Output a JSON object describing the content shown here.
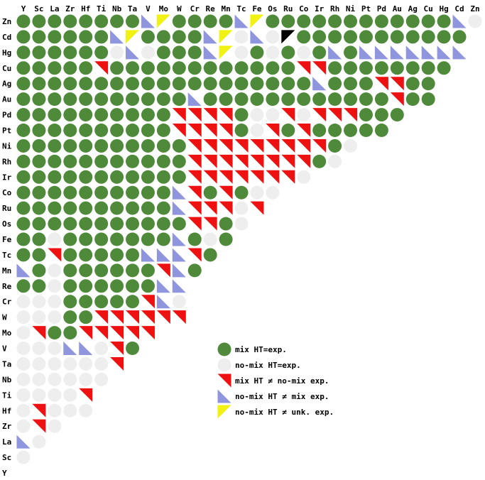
{
  "chart_data": {
    "type": "heatmap",
    "columns": [
      "Y",
      "Sc",
      "La",
      "Zr",
      "Hf",
      "Ti",
      "Nb",
      "Ta",
      "V",
      "Mo",
      "W",
      "Cr",
      "Re",
      "Mn",
      "Tc",
      "Fe",
      "Os",
      "Ru",
      "Co",
      "Ir",
      "Rh",
      "Ni",
      "Pt",
      "Pd",
      "Au",
      "Ag",
      "Cu",
      "Hg",
      "Cd",
      "Zn"
    ],
    "rows": [
      "Zn",
      "Cd",
      "Hg",
      "Cu",
      "Ag",
      "Au",
      "Pd",
      "Pt",
      "Ni",
      "Rh",
      "Ir",
      "Co",
      "Ru",
      "Os",
      "Fe",
      "Tc",
      "Mn",
      "Re",
      "Cr",
      "W",
      "Mo",
      "V",
      "Ta",
      "Nb",
      "Ti",
      "Hf",
      "Zr",
      "La",
      "Sc",
      "Y"
    ],
    "cells": [
      "GGGGGGGGBYGGGGBYGGGGGGGGGGGGBE",
      "GGGGGGBYGGGGBYEBEPGGGGGGGGGGG",
      "GGGGGGEBEGGGBYEGEGEGBGBBBBBBB",
      "GGGGGRGGGGGGGGGGGGRRGGGGGGGG",
      "GGGGGGGGGGGGGGGGGGGBGGGRRGG",
      "GGGGGGGGGGGBGGGGGGGGGGGGRGG",
      "GGGGGGGGGGRRRRGEERERRRGGG",
      "GGGGGGGGGGRRRRGERGRGGGGG",
      "GGGGGGGGGGGRRRRRRRRRGE",
      "GGGGGGGGGGGRRRRRRRRGE",
      "GGGGGGGGGGGRRRRRRRE",
      "GGGGGGGGGGBRGRGEE",
      "GGGGGGGGGGBRRRER",
      "GGGGGGGGGGGRRGE",
      "GGEGGGGGGGBGEG",
      "GGRGGGGGBBBRG",
      "BGEGGGGGGRBG",
      "GGEGGGGGGBB",
      "EEEGGGGGRBE",
      "EEEGGRRRRRR",
      "ERGGRRRRR",
      "EEEBBERG",
      "EEEEEER",
      "EEEEEE",
      "EEEER",
      "EREEE",
      "ERE",
      "BE",
      "E",
      ""
    ],
    "cell_codes": {
      "G": "mix HT=exp.",
      "E": "no-mix HT=exp.",
      "R": "mix HT ≠ no-mix exp.",
      "B": "no-mix HT ≠ mix exp.",
      "Y": "no-mix HT ≠ unk. exp."
    },
    "colors": {
      "G": "#4f8a3a",
      "E": "#eeeeee",
      "R": "#ee1111",
      "B": "#8f96dd",
      "Y": "#f2f212"
    },
    "legend": [
      {
        "code": "G",
        "label": "mix HT=exp."
      },
      {
        "code": "E",
        "label": "no-mix HT=exp."
      },
      {
        "code": "R",
        "label": "mix HT ≠ no-mix exp."
      },
      {
        "code": "B",
        "label": "no-mix HT ≠ mix exp."
      },
      {
        "code": "Y",
        "label": "no-mix HT ≠ unk. exp."
      }
    ],
    "legend_placement": "lower-right",
    "grid": false
  }
}
